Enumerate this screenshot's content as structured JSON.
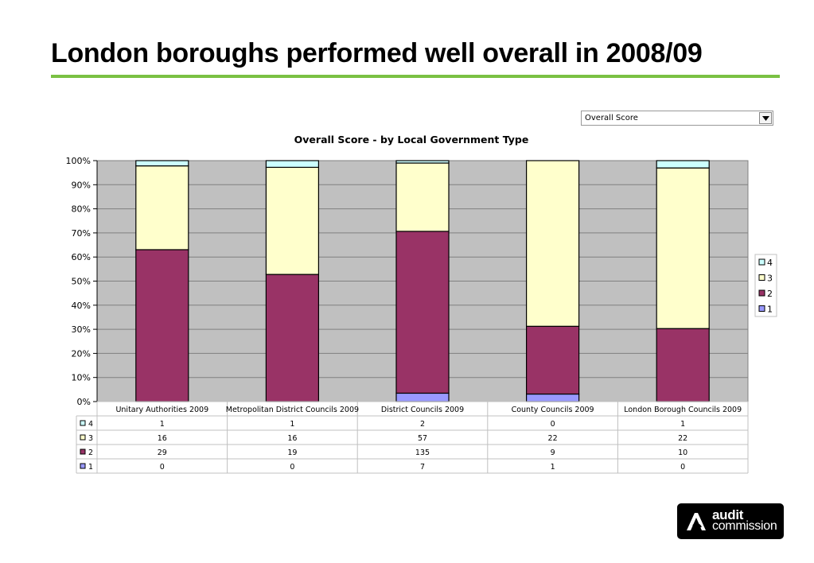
{
  "slide": {
    "title": "London boroughs performed well overall in 2008/09",
    "rule_color": "#7AC143"
  },
  "selector": {
    "value": "Overall Score"
  },
  "logo": {
    "line1": "audit",
    "line2": "commission"
  },
  "chart_data": {
    "type": "bar",
    "stacked": "percent",
    "title": "Overall Score - by Local Government Type",
    "categories": [
      "Unitary Authorities 2009",
      "Metropolitan District Councils 2009",
      "District Councils 2009",
      "County Councils 2009",
      "London Borough Councils 2009"
    ],
    "series": [
      {
        "name": "1",
        "values": [
          0,
          0,
          7,
          1,
          0
        ],
        "color": "#9999FF"
      },
      {
        "name": "2",
        "values": [
          29,
          19,
          135,
          9,
          10
        ],
        "color": "#993366"
      },
      {
        "name": "3",
        "values": [
          16,
          16,
          57,
          22,
          22
        ],
        "color": "#FFFFCC"
      },
      {
        "name": "4",
        "values": [
          1,
          1,
          2,
          0,
          1
        ],
        "color": "#CCFFFF"
      }
    ],
    "ylim": [
      0,
      100
    ],
    "y_ticks": [
      "0%",
      "10%",
      "20%",
      "30%",
      "40%",
      "50%",
      "60%",
      "70%",
      "80%",
      "90%",
      "100%"
    ],
    "table_row_order": [
      "4",
      "3",
      "2",
      "1"
    ],
    "legend_order": [
      "4",
      "3",
      "2",
      "1"
    ],
    "legend_position": "right",
    "plot_background": "#C0C0C0",
    "grid": true
  }
}
